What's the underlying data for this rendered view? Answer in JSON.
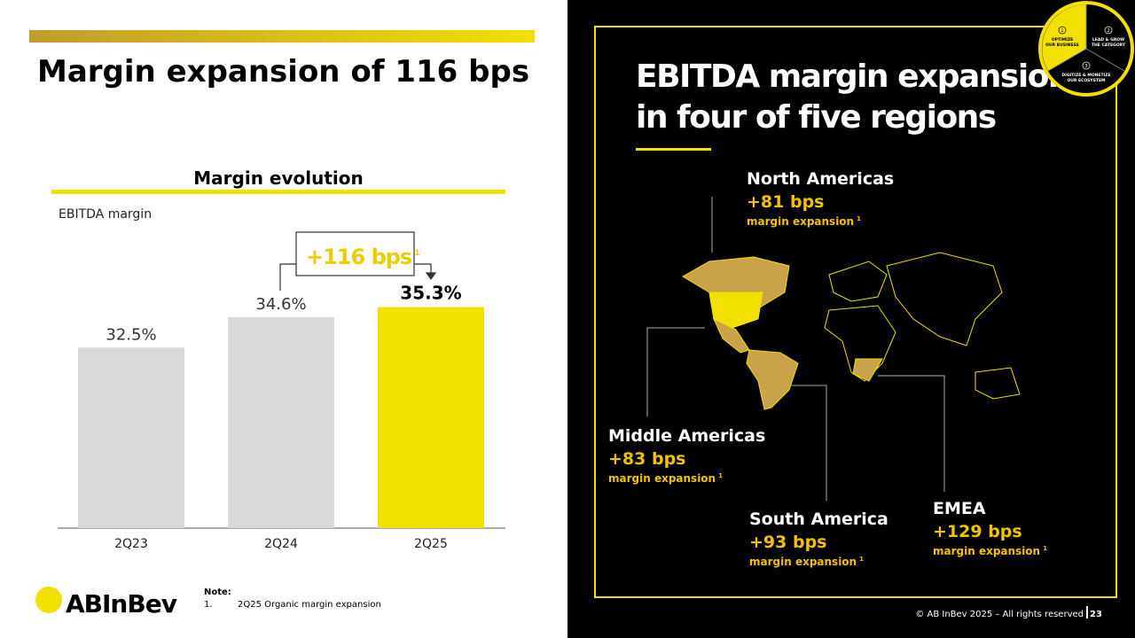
{
  "header": {
    "title": "Margin expansion of 116 bps"
  },
  "chart_data": {
    "type": "bar",
    "title": "Margin evolution",
    "ylabel": "EBITDA margin",
    "categories": [
      "2Q23",
      "2Q24",
      "2Q25"
    ],
    "values": [
      32.5,
      34.6,
      35.3
    ],
    "value_labels": [
      "32.5%",
      "34.6%",
      "35.3%"
    ],
    "colors": [
      "#d9d9d9",
      "#d9d9d9",
      "#f2e000"
    ],
    "ylim": [
      20,
      40
    ],
    "annotation": {
      "text": "+116 bps",
      "footnote": "1"
    }
  },
  "logo": "ABInBev",
  "note": {
    "heading": "Note:",
    "items": [
      {
        "number": "1.",
        "text": "2Q25 Organic margin expansion"
      }
    ]
  },
  "panel": {
    "title_lines": [
      "EBITDA margin expansion",
      "in four of five regions"
    ],
    "badge": [
      {
        "number": "1",
        "lines": [
          "OPTIMIZE",
          "OUR BUSINESS"
        ]
      },
      {
        "number": "2",
        "lines": [
          "LEAD & GROW",
          "THE CATEGORY"
        ]
      },
      {
        "number": "3",
        "lines": [
          "DIGITIZE & MONETIZE",
          "OUR ECOSYSTEM"
        ]
      }
    ],
    "regions": [
      {
        "name": "North Americas",
        "value": "+81 bps",
        "label": "margin expansion",
        "footnote": "1"
      },
      {
        "name": "Middle Americas",
        "value": "+83 bps",
        "label": "margin expansion",
        "footnote": "1"
      },
      {
        "name": "South America",
        "value": "+93 bps",
        "label": "margin expansion",
        "footnote": "1"
      },
      {
        "name": "EMEA",
        "value": "+129 bps",
        "label": "margin expansion",
        "footnote": "1"
      }
    ]
  },
  "footer": {
    "copyright": "© AB InBev 2025 – All rights reserved",
    "page": "23"
  }
}
